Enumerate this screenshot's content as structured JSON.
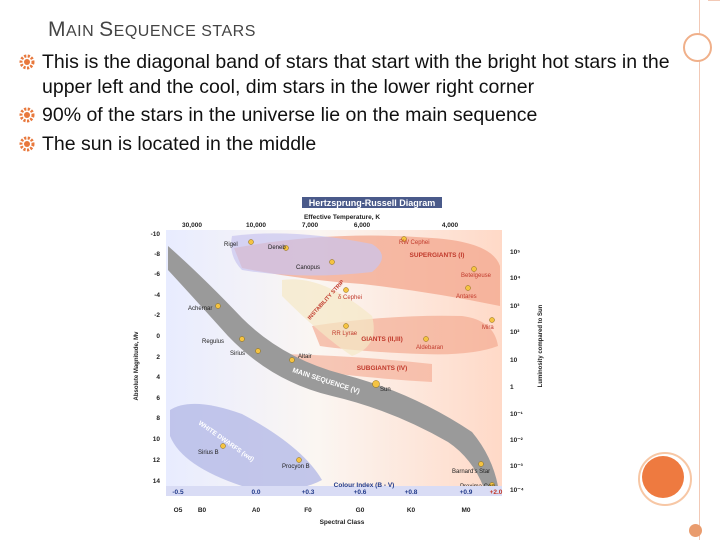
{
  "slide": {
    "title_first_cap": "M",
    "title_rest1": "AIN ",
    "title_second_cap": "S",
    "title_rest2": "EQUENCE STARS",
    "bullets": [
      "This is the diagonal band of stars that start with the bright hot stars in the upper left and the cool, dim stars in the lower right corner",
      "90% of the stars in the universe lie on the main sequence",
      "The sun is located in the middle"
    ]
  },
  "diagram": {
    "title": "Hertzsprung-Russell Diagram",
    "top_axis_label": "Effective Temperature, K",
    "top_ticks": [
      "30,000",
      "10,000",
      "7,000",
      "6,000",
      "4,000"
    ],
    "left_axis_label": "Absolute Magnitude, Mv",
    "left_ticks": [
      "-10",
      "-8",
      "-6",
      "-4",
      "-2",
      "0",
      "2",
      "4",
      "6",
      "8",
      "10",
      "12",
      "14"
    ],
    "right_axis_label": "Luminosity compared to Sun",
    "right_ticks": [
      "10⁵",
      "10⁴",
      "10³",
      "10²",
      "10",
      "1",
      "10⁻¹",
      "10⁻²",
      "10⁻³",
      "10⁻⁴"
    ],
    "colour_index_label": "Colour Index (B - V)",
    "colour_ticks": [
      "-0.5",
      "0.0",
      "+0.3",
      "+0.6",
      "+0.8",
      "+0.9",
      "+2.0"
    ],
    "spectral_label": "Spectral Class",
    "spectral_ticks": [
      "O5",
      "B0",
      "A0",
      "F0",
      "G0",
      "K0",
      "M0"
    ],
    "regions": [
      "SUPERGIANTS (I)",
      "GIANTS (II,III)",
      "SUBGIANTS (IV)",
      "MAIN SEQUENCE (V)",
      "WHITE DWARFS (wd)",
      "INSTABILITY STRIP"
    ],
    "stars": [
      "Rigel",
      "Deneb",
      "Canopus",
      "RW Cephei",
      "Betelgeuse",
      "Antares",
      "δ Cephei",
      "Achernar",
      "Mira",
      "RR Lyrae",
      "Regulus",
      "Aldebaran",
      "Sirius",
      "Altair",
      "Sun",
      "Sirius B",
      "Procyon B",
      "Barnard's Star",
      "Proxima Cen"
    ]
  },
  "colors": {
    "accent": "#ee7a40",
    "bullet_marker": "#e8783c",
    "main_sequence_band": "#9a9a9a",
    "supergiants_region": "#f3a78e",
    "white_dwarf_region": "#b9bde8"
  }
}
